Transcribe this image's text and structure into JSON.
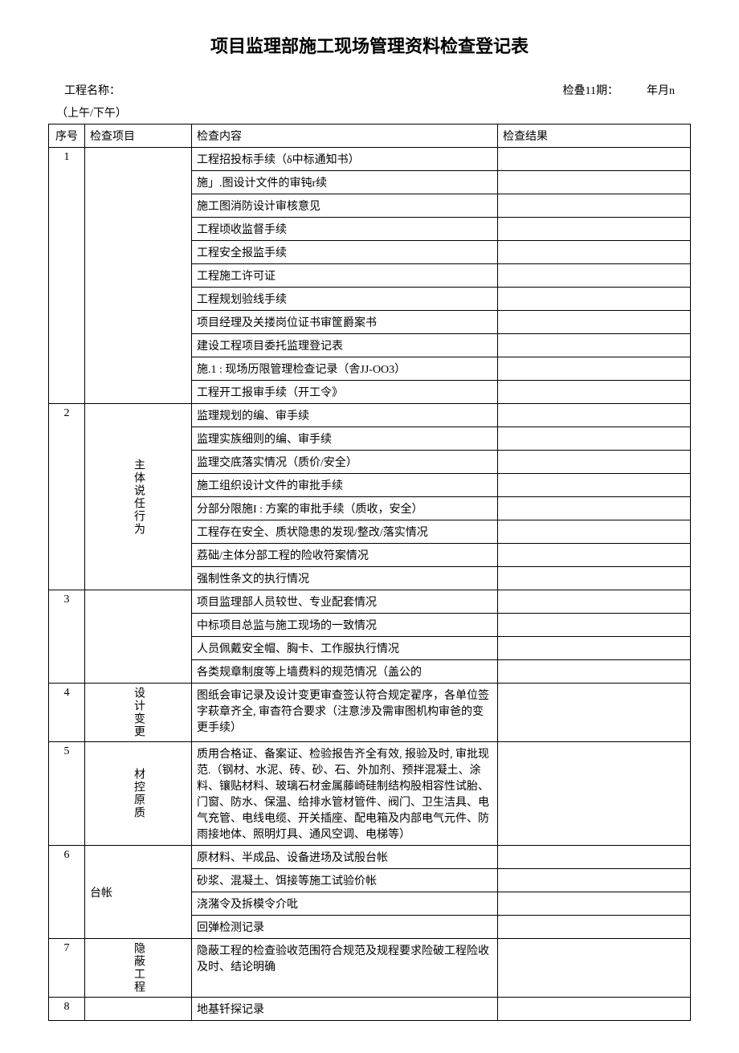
{
  "title": "项目监理部施工现场管理资料检查登记表",
  "header": {
    "project_label": "工程名称：",
    "check_date_label": "检叠11期：",
    "date_suffix": "年月n",
    "time_period": "（上午/下午）"
  },
  "columns": {
    "seq": "序号",
    "item": "检查项目",
    "content": "检查内容",
    "result": "检查结果"
  },
  "sections": [
    {
      "seq": "1",
      "item": "",
      "rows": [
        "工程招投标手续（δ中标通知书）",
        "施」.图设计文件的审钝r续",
        "施工图消防设计审核意见",
        "工程顷收监督手续",
        "工程安全报监手续",
        "工程施工许可证",
        "工程规划验线手续",
        "项目经理及关搂岗位证书审筐爵案书",
        "建设工程项目委托监理登记表",
        "施.1 : 现场历限管理检查记录（舎JJ-OO3）",
        "工程开工报审手续（开工令》"
      ]
    },
    {
      "seq": "2",
      "item": "主体说任行为",
      "rows": [
        "监理规划的编、审手续",
        "监理实族细则的编、审手续",
        "监理交底落实情况（质价/安全）",
        "施工组织设计文件的审批手续",
        "分部分限施I : 方案的审批手续（质收，安全）",
        "工程存在安全、质状隐患的发现/整改/落实情况",
        "荔础/主体分部工程的险收符案情况",
        "强制性条文的执行情况"
      ]
    },
    {
      "seq": "3",
      "item": "",
      "rows": [
        "项目监理部人员较世、专业配套情况",
        "中标项目总监与施工现场的一致情况",
        "人员佩戴安全帽、胸卡、工作服执行情况",
        "各类规章制度等上墙费料的规范情况（盖公的"
      ]
    },
    {
      "seq": "4",
      "item": "设计变更",
      "rows": [
        "图纸会审记录及设计变更审查签认符合规定翟序，各单位签字萩章齐全, 审杳符合要求（注意涉及需审图机构审爸的变更手续）"
      ]
    },
    {
      "seq": "5",
      "item": "材控原质",
      "rows": [
        "质用合格证、备案证、检验报告齐全有效, 报验及时, 审批现范.（钢材、水泥、砖、砂、石、外加剂、预拌混凝土、涂料、镶贴材料、玻璃石材金属藤崎硅制结构股相容性试胎、门窗、防水、保温、给排水管材管件、阀门、卫生洁具、电气充管、电线电缆、开关插座、配电箱及内部电气元件、防雨接地体、照明灯具、通风空调、电梯等）"
      ]
    },
    {
      "seq": "6",
      "item": "台帐",
      "rows": [
        "原材料、半成品、设备进场及试般台帐",
        "砂浆、混凝土、饵接等施工试验价帐",
        "浇潴令及拆模令介吡",
        "回弹检测记录"
      ]
    },
    {
      "seq": "7",
      "item": "隐蔽工程",
      "rows": [
        "隐蔽工程的检查验收范围符合规范及规程要求险破工程险收及时、结论明确"
      ]
    },
    {
      "seq": "8",
      "item": "",
      "rows": [
        "地基钎探记录"
      ]
    }
  ]
}
